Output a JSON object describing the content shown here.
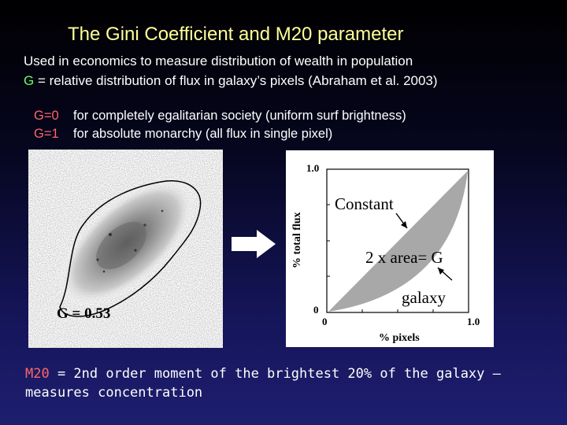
{
  "slide": {
    "title": "The Gini Coefficient and M20 parameter",
    "line1": "Used in economics to measure distribution of wealth in population",
    "line2_symbol": "G",
    "line2_rest": " = relative distribution of flux in galaxy’s pixels (Abraham et al. 2003)",
    "gini_definitions": [
      {
        "label": "G=0",
        "text": "for completely egalitarian society (uniform surf brightness)"
      },
      {
        "label": "G=1",
        "text": "for absolute monarchy (all flux in single pixel)"
      }
    ],
    "galaxy_image": {
      "label": "G = 0.53"
    },
    "plot": {
      "y_axis_label": "% total flux",
      "x_axis_label": "% pixels",
      "y_tick_top": "1.0",
      "y_tick_bottom": "0",
      "x_tick_left": "0",
      "x_tick_right": "1.0",
      "annotation_constant": "Constant",
      "annotation_area": "2 x area= G",
      "annotation_galaxy": "galaxy"
    },
    "m20_key": "M20",
    "m20_line1_rest": " = 2nd order moment of the brightest 20% of the galaxy –",
    "m20_line2": "measures concentration",
    "colors": {
      "title": "#ffff99",
      "gini_symbol": "#66ff66",
      "definition_label": "#ff6666"
    }
  }
}
